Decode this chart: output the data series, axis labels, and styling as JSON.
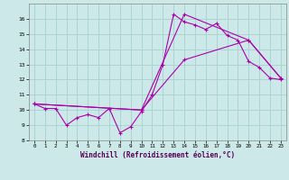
{
  "xlabel": "Windchill (Refroidissement éolien,°C)",
  "xlim": [
    -0.5,
    23.5
  ],
  "ylim": [
    8,
    17
  ],
  "yticks": [
    8,
    9,
    10,
    11,
    12,
    13,
    14,
    15,
    16
  ],
  "xticks": [
    0,
    1,
    2,
    3,
    4,
    5,
    6,
    7,
    8,
    9,
    10,
    11,
    12,
    13,
    14,
    15,
    16,
    17,
    18,
    19,
    20,
    21,
    22,
    23
  ],
  "bg_color": "#cce8e8",
  "grid_color": "#aad4d4",
  "line_color": "#aa00aa",
  "line1_x": [
    0,
    1,
    2,
    3,
    4,
    5,
    6,
    7,
    8,
    9,
    10,
    11,
    12,
    13,
    14,
    15,
    16,
    17,
    18,
    19,
    20,
    21,
    22,
    23
  ],
  "line1_y": [
    10.4,
    10.1,
    10.1,
    9.0,
    9.5,
    9.7,
    9.5,
    10.1,
    8.5,
    8.9,
    9.9,
    11.0,
    13.0,
    16.3,
    15.8,
    15.6,
    15.3,
    15.7,
    14.9,
    14.6,
    13.2,
    12.8,
    12.1,
    12.0
  ],
  "line2_x": [
    0,
    10,
    14,
    20,
    23
  ],
  "line2_y": [
    10.4,
    10.0,
    13.3,
    14.6,
    12.1
  ],
  "line3_x": [
    0,
    10,
    14,
    20,
    23
  ],
  "line3_y": [
    10.4,
    10.0,
    16.3,
    14.6,
    12.1
  ]
}
